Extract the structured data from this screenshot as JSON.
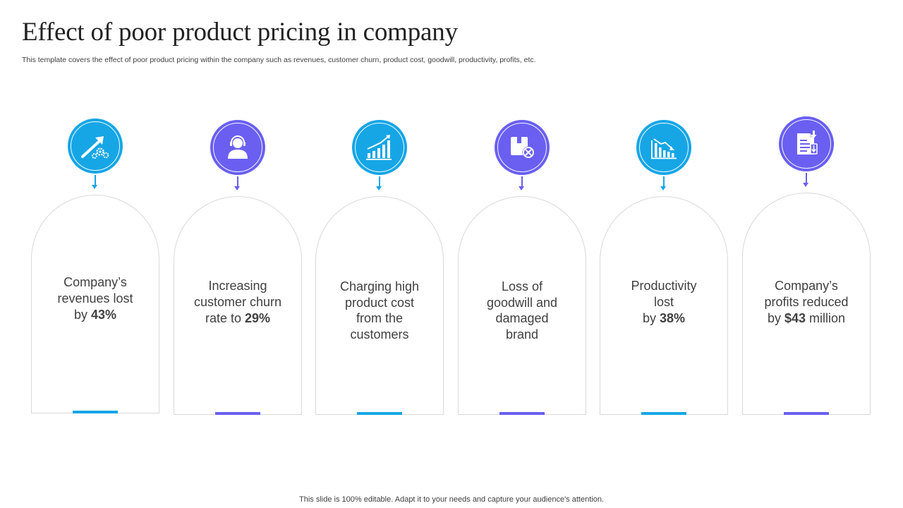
{
  "title": "Effect of poor product pricing in company",
  "subtitle": "This template covers the effect of poor product pricing within the company such as revenues, customer churn, product cost, goodwill, productivity, profits, etc.",
  "footer": "This slide is 100% editable. Adapt it to your needs and capture your audience's attention.",
  "colors": {
    "blue": "#16a6e6",
    "purple": "#6a5ff0",
    "card_border": "#d9d9d9"
  },
  "cards": [
    {
      "icon": "growth-arrow-gears-icon",
      "color": "blue",
      "lines": [
        "Company’s",
        "revenues lost"
      ],
      "prefix": "by ",
      "highlight": "43%",
      "suffix": ""
    },
    {
      "icon": "customer-person-icon",
      "color": "purple",
      "lines": [
        "Increasing",
        "customer churn"
      ],
      "prefix": "rate to ",
      "highlight": "29%",
      "suffix": ""
    },
    {
      "icon": "rising-bar-chart-icon",
      "color": "blue",
      "lines": [
        "Charging high",
        "product cost",
        "from the",
        "customers"
      ],
      "prefix": "",
      "highlight": "",
      "suffix": ""
    },
    {
      "icon": "damaged-box-icon",
      "color": "purple",
      "lines": [
        "Loss of",
        "goodwill and",
        "damaged",
        "brand"
      ],
      "prefix": "",
      "highlight": "",
      "suffix": ""
    },
    {
      "icon": "declining-bar-chart-icon",
      "color": "blue",
      "lines": [
        "Productivity",
        "lost"
      ],
      "prefix": "by ",
      "highlight": "38%",
      "suffix": ""
    },
    {
      "icon": "profit-document-down-icon",
      "color": "purple",
      "lines": [
        "Company’s",
        "profits reduced"
      ],
      "prefix": "by ",
      "highlight": "$43",
      "suffix": " million"
    }
  ]
}
